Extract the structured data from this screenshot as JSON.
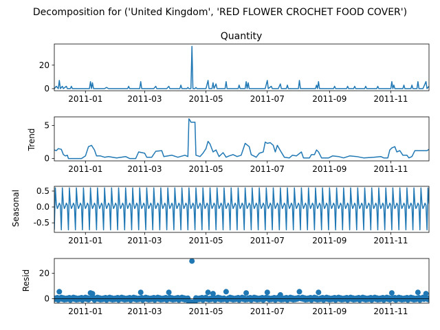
{
  "figure": {
    "suptitle": "Decomposition for ('United Kingdom', 'RED FLOWER CROCHET FOOD COVER')"
  },
  "colors": {
    "series": "#1f77b4",
    "axis": "#000000"
  },
  "chart_data": [
    {
      "type": "line",
      "title": "Quantity",
      "ylabel": "",
      "xlim": [
        "2010-12-01",
        "2011-12-09"
      ],
      "ylim": [
        -1.8,
        38
      ],
      "xticks": [
        "2011-01",
        "2011-03",
        "2011-05",
        "2011-07",
        "2011-09",
        "2011-11"
      ],
      "yticks": [
        0,
        20
      ],
      "series": [
        {
          "points": [
            [
              "2010-12-01",
              0
            ],
            [
              "2010-12-03",
              2
            ],
            [
              "2010-12-05",
              0
            ],
            [
              "2010-12-06",
              7
            ],
            [
              "2010-12-07",
              0
            ],
            [
              "2010-12-09",
              2
            ],
            [
              "2010-12-10",
              0
            ],
            [
              "2010-12-13",
              2
            ],
            [
              "2010-12-14",
              0
            ],
            [
              "2010-12-17",
              0
            ],
            [
              "2010-12-18",
              2
            ],
            [
              "2010-12-19",
              0
            ],
            [
              "2011-01-05",
              0
            ],
            [
              "2011-01-06",
              6
            ],
            [
              "2011-01-07",
              0
            ],
            [
              "2011-01-08",
              5
            ],
            [
              "2011-01-09",
              0
            ],
            [
              "2011-01-20",
              0
            ],
            [
              "2011-01-22",
              1
            ],
            [
              "2011-01-24",
              0
            ],
            [
              "2011-02-12",
              0
            ],
            [
              "2011-02-13",
              2
            ],
            [
              "2011-02-14",
              0
            ],
            [
              "2011-02-24",
              0
            ],
            [
              "2011-02-25",
              6
            ],
            [
              "2011-02-26",
              0
            ],
            [
              "2011-03-10",
              0
            ],
            [
              "2011-03-12",
              2
            ],
            [
              "2011-03-13",
              0
            ],
            [
              "2011-03-23",
              0
            ],
            [
              "2011-03-25",
              2
            ],
            [
              "2011-03-26",
              0
            ],
            [
              "2011-04-05",
              0
            ],
            [
              "2011-04-06",
              3
            ],
            [
              "2011-04-07",
              0
            ],
            [
              "2011-04-12",
              0
            ],
            [
              "2011-04-13",
              1
            ],
            [
              "2011-04-14",
              0
            ],
            [
              "2011-04-16",
              0
            ],
            [
              "2011-04-17",
              36
            ],
            [
              "2011-04-18",
              0
            ],
            [
              "2011-04-20",
              0
            ],
            [
              "2011-04-21",
              1
            ],
            [
              "2011-04-22",
              0
            ],
            [
              "2011-05-01",
              0
            ],
            [
              "2011-05-03",
              7
            ],
            [
              "2011-05-04",
              0
            ],
            [
              "2011-05-07",
              0
            ],
            [
              "2011-05-08",
              5
            ],
            [
              "2011-05-09",
              0
            ],
            [
              "2011-05-11",
              4
            ],
            [
              "2011-05-12",
              0
            ],
            [
              "2011-05-20",
              0
            ],
            [
              "2011-05-21",
              6
            ],
            [
              "2011-05-22",
              0
            ],
            [
              "2011-06-02",
              0
            ],
            [
              "2011-06-03",
              3
            ],
            [
              "2011-06-04",
              0
            ],
            [
              "2011-06-09",
              0
            ],
            [
              "2011-06-10",
              6
            ],
            [
              "2011-06-11",
              0
            ],
            [
              "2011-06-12",
              5
            ],
            [
              "2011-06-13",
              0
            ],
            [
              "2011-06-29",
              0
            ],
            [
              "2011-07-01",
              7
            ],
            [
              "2011-07-02",
              0
            ],
            [
              "2011-07-05",
              2
            ],
            [
              "2011-07-06",
              0
            ],
            [
              "2011-07-12",
              0
            ],
            [
              "2011-07-14",
              4
            ],
            [
              "2011-07-15",
              0
            ],
            [
              "2011-07-20",
              0
            ],
            [
              "2011-07-21",
              3
            ],
            [
              "2011-07-22",
              0
            ],
            [
              "2011-08-01",
              0
            ],
            [
              "2011-08-02",
              7
            ],
            [
              "2011-08-03",
              0
            ],
            [
              "2011-08-18",
              0
            ],
            [
              "2011-08-19",
              3
            ],
            [
              "2011-08-20",
              0
            ],
            [
              "2011-08-21",
              6
            ],
            [
              "2011-08-22",
              0
            ],
            [
              "2011-09-05",
              0
            ],
            [
              "2011-09-06",
              2
            ],
            [
              "2011-09-07",
              0
            ],
            [
              "2011-09-18",
              0
            ],
            [
              "2011-09-19",
              2
            ],
            [
              "2011-09-20",
              0
            ],
            [
              "2011-09-25",
              0
            ],
            [
              "2011-09-26",
              2
            ],
            [
              "2011-09-27",
              0
            ],
            [
              "2011-10-06",
              0
            ],
            [
              "2011-10-07",
              2
            ],
            [
              "2011-10-08",
              0
            ],
            [
              "2011-10-18",
              0
            ],
            [
              "2011-10-19",
              2
            ],
            [
              "2011-10-20",
              0
            ],
            [
              "2011-11-01",
              0
            ],
            [
              "2011-11-02",
              6
            ],
            [
              "2011-11-03",
              0
            ],
            [
              "2011-11-04",
              3
            ],
            [
              "2011-11-05",
              0
            ],
            [
              "2011-11-13",
              0
            ],
            [
              "2011-11-14",
              3
            ],
            [
              "2011-11-15",
              0
            ],
            [
              "2011-11-21",
              0
            ],
            [
              "2011-11-22",
              3
            ],
            [
              "2011-11-23",
              0
            ],
            [
              "2011-11-27",
              0
            ],
            [
              "2011-11-28",
              6
            ],
            [
              "2011-11-29",
              0
            ],
            [
              "2011-12-03",
              0
            ],
            [
              "2011-12-06",
              6
            ],
            [
              "2011-12-07",
              0
            ],
            [
              "2011-12-09",
              2
            ]
          ]
        }
      ]
    },
    {
      "type": "line",
      "title": "",
      "ylabel": "Trend",
      "xlim": [
        "2010-12-01",
        "2011-12-09"
      ],
      "ylim": [
        -0.35,
        6.3
      ],
      "xticks": [
        "2011-01",
        "2011-03",
        "2011-05",
        "2011-07",
        "2011-09",
        "2011-11"
      ],
      "yticks": [
        0,
        5
      ],
      "series": [
        {
          "points": [
            [
              "2010-12-01",
              1.3
            ],
            [
              "2010-12-03",
              1.2
            ],
            [
              "2010-12-05",
              1.5
            ],
            [
              "2010-12-08",
              1.4
            ],
            [
              "2010-12-10",
              0.6
            ],
            [
              "2010-12-12",
              0.4
            ],
            [
              "2010-12-14",
              0.5
            ],
            [
              "2010-12-15",
              0.0
            ],
            [
              "2010-12-28",
              0.0
            ],
            [
              "2011-01-01",
              0.4
            ],
            [
              "2011-01-04",
              1.8
            ],
            [
              "2011-01-07",
              2.0
            ],
            [
              "2011-01-10",
              1.3
            ],
            [
              "2011-01-12",
              0.4
            ],
            [
              "2011-01-16",
              0.4
            ],
            [
              "2011-01-20",
              0.2
            ],
            [
              "2011-01-24",
              0.3
            ],
            [
              "2011-02-01",
              0.1
            ],
            [
              "2011-02-10",
              0.3
            ],
            [
              "2011-02-14",
              0.0
            ],
            [
              "2011-02-20",
              0.0
            ],
            [
              "2011-02-23",
              1.0
            ],
            [
              "2011-03-01",
              0.8
            ],
            [
              "2011-03-03",
              0.2
            ],
            [
              "2011-03-08",
              0.2
            ],
            [
              "2011-03-12",
              1.1
            ],
            [
              "2011-03-18",
              1.2
            ],
            [
              "2011-03-20",
              0.3
            ],
            [
              "2011-03-28",
              0.5
            ],
            [
              "2011-04-03",
              0.2
            ],
            [
              "2011-04-10",
              0.5
            ],
            [
              "2011-04-13",
              0.3
            ],
            [
              "2011-04-14",
              6.0
            ],
            [
              "2011-04-15",
              5.8
            ],
            [
              "2011-04-16",
              5.5
            ],
            [
              "2011-04-20",
              5.5
            ],
            [
              "2011-04-21",
              0.5
            ],
            [
              "2011-04-25",
              0.3
            ],
            [
              "2011-04-28",
              0.8
            ],
            [
              "2011-05-01",
              1.5
            ],
            [
              "2011-05-03",
              2.6
            ],
            [
              "2011-05-05",
              2.2
            ],
            [
              "2011-05-08",
              1.0
            ],
            [
              "2011-05-11",
              1.3
            ],
            [
              "2011-05-14",
              0.3
            ],
            [
              "2011-05-18",
              0.9
            ],
            [
              "2011-05-21",
              0.2
            ],
            [
              "2011-05-24",
              0.4
            ],
            [
              "2011-05-28",
              0.6
            ],
            [
              "2011-06-01",
              0.3
            ],
            [
              "2011-06-05",
              0.5
            ],
            [
              "2011-06-09",
              2.3
            ],
            [
              "2011-06-13",
              1.8
            ],
            [
              "2011-06-15",
              0.6
            ],
            [
              "2011-06-20",
              0.2
            ],
            [
              "2011-06-23",
              0.8
            ],
            [
              "2011-06-27",
              1.0
            ],
            [
              "2011-06-29",
              2.5
            ],
            [
              "2011-07-01",
              2.3
            ],
            [
              "2011-07-04",
              2.4
            ],
            [
              "2011-07-07",
              2.0
            ],
            [
              "2011-07-09",
              1.0
            ],
            [
              "2011-07-11",
              2.0
            ],
            [
              "2011-07-14",
              1.2
            ],
            [
              "2011-07-18",
              0.2
            ],
            [
              "2011-07-23",
              0.1
            ],
            [
              "2011-07-26",
              0.5
            ],
            [
              "2011-07-30",
              0.4
            ],
            [
              "2011-08-04",
              1.0
            ],
            [
              "2011-08-06",
              0.1
            ],
            [
              "2011-08-12",
              0.1
            ],
            [
              "2011-08-14",
              0.6
            ],
            [
              "2011-08-17",
              0.6
            ],
            [
              "2011-08-19",
              1.3
            ],
            [
              "2011-08-21",
              1.0
            ],
            [
              "2011-08-24",
              0.1
            ],
            [
              "2011-08-31",
              0.1
            ],
            [
              "2011-09-04",
              0.4
            ],
            [
              "2011-09-10",
              0.3
            ],
            [
              "2011-09-15",
              0.1
            ],
            [
              "2011-09-21",
              0.4
            ],
            [
              "2011-09-28",
              0.3
            ],
            [
              "2011-10-05",
              0.1
            ],
            [
              "2011-10-15",
              0.2
            ],
            [
              "2011-10-22",
              0.3
            ],
            [
              "2011-10-25",
              0.1
            ],
            [
              "2011-10-29",
              0.1
            ],
            [
              "2011-10-31",
              1.3
            ],
            [
              "2011-11-02",
              1.6
            ],
            [
              "2011-11-05",
              1.8
            ],
            [
              "2011-11-07",
              1.0
            ],
            [
              "2011-11-10",
              1.2
            ],
            [
              "2011-11-13",
              0.5
            ],
            [
              "2011-11-17",
              0.5
            ],
            [
              "2011-11-19",
              0.1
            ],
            [
              "2011-11-22",
              0.3
            ],
            [
              "2011-11-25",
              1.2
            ],
            [
              "2011-12-07",
              1.2
            ],
            [
              "2011-12-09",
              1.4
            ]
          ]
        }
      ]
    },
    {
      "type": "line",
      "title": "",
      "ylabel": "Seasonal",
      "xlim": [
        "2010-12-01",
        "2011-12-09"
      ],
      "ylim": [
        -0.8,
        0.65
      ],
      "xticks": [
        "2011-01",
        "2011-03",
        "2011-05",
        "2011-07",
        "2011-09",
        "2011-11"
      ],
      "yticks": [
        0.5,
        0.0,
        -0.5
      ],
      "period_days": 7,
      "weekly_pattern": [
        -0.72,
        0.6,
        0.1,
        -0.05,
        0.02,
        0.12,
        0.05
      ]
    },
    {
      "type": "scatter",
      "title": "",
      "ylabel": "Resid",
      "xlim": [
        "2010-12-01",
        "2011-12-09"
      ],
      "ylim": [
        -3.5,
        31.5
      ],
      "xticks": [
        "2011-01",
        "2011-03",
        "2011-05",
        "2011-07",
        "2011-09",
        "2011-11"
      ],
      "yticks": [
        0,
        20
      ],
      "baseline": 0,
      "notable_points": [
        [
          "2010-12-06",
          5.5
        ],
        [
          "2011-01-06",
          4.5
        ],
        [
          "2011-01-08",
          4.0
        ],
        [
          "2011-02-25",
          5.0
        ],
        [
          "2011-03-25",
          5.0
        ],
        [
          "2011-04-14",
          -2.5
        ],
        [
          "2011-04-15",
          -2.8
        ],
        [
          "2011-04-16",
          -2.6
        ],
        [
          "2011-04-17",
          29.5
        ],
        [
          "2011-04-18",
          -2.7
        ],
        [
          "2011-04-19",
          -2.4
        ],
        [
          "2011-04-20",
          -2.3
        ],
        [
          "2011-05-03",
          5.0
        ],
        [
          "2011-05-08",
          4.0
        ],
        [
          "2011-05-21",
          5.5
        ],
        [
          "2011-06-10",
          4.5
        ],
        [
          "2011-07-01",
          5.0
        ],
        [
          "2011-07-14",
          3.0
        ],
        [
          "2011-08-02",
          5.5
        ],
        [
          "2011-08-21",
          5.0
        ],
        [
          "2011-11-02",
          4.5
        ],
        [
          "2011-11-28",
          5.0
        ],
        [
          "2011-12-06",
          4.0
        ]
      ]
    }
  ]
}
